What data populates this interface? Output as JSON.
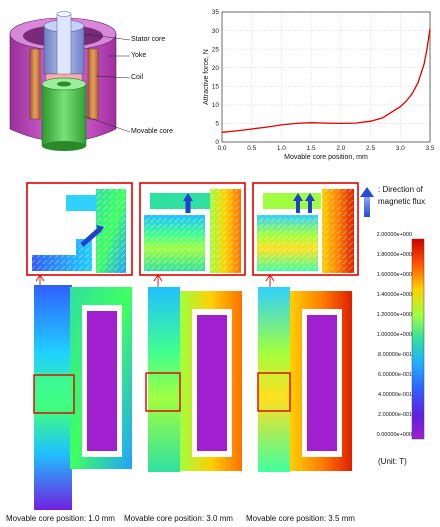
{
  "solenoid_labels": {
    "stator_core": "Stator core",
    "yoke": "Yoke",
    "coil": "Coil",
    "movable_core": "Movable core"
  },
  "chart_data": {
    "type": "line",
    "title": "",
    "xlabel": "Movable core position, mm",
    "ylabel": "Attractive force, N",
    "xlim": [
      0,
      3.5
    ],
    "ylim": [
      0,
      35
    ],
    "xticks": [
      "0.0",
      "0.5",
      "1.0",
      "1.5",
      "2.0",
      "2.5",
      "3.0",
      "3.5"
    ],
    "yticks": [
      "0",
      "5",
      "10",
      "15",
      "20",
      "25",
      "30",
      "35"
    ],
    "grid": true,
    "series": [
      {
        "color": "#e00000",
        "x": [
          0.0,
          0.25,
          0.5,
          0.75,
          1.0,
          1.25,
          1.5,
          1.75,
          2.0,
          2.25,
          2.5,
          2.7,
          2.9,
          3.0,
          3.1,
          3.2,
          3.3,
          3.4,
          3.45,
          3.5
        ],
        "y": [
          2.6,
          3.0,
          3.5,
          4.0,
          4.6,
          5.0,
          5.2,
          5.1,
          5.0,
          5.1,
          5.6,
          6.5,
          8.5,
          9.5,
          11.0,
          13.0,
          16.0,
          21.0,
          25.0,
          30.5
        ]
      }
    ]
  },
  "flux_legend": {
    "line1": ": Direction of",
    "line2": "magnetic flux"
  },
  "colorbar": {
    "labels": [
      "2.00000e+000",
      "1.80000e+000",
      "1.60000e+000",
      "1.40000e+000",
      "1.20000e+000",
      "1.00000e+000",
      "8.00000e-001",
      "6.00000e-001",
      "4.00000e-001",
      "2.00000e-001",
      "0.00000e+000"
    ],
    "unit": "(Unit: T)",
    "colors": [
      "#d00000",
      "#ff6000",
      "#ffd000",
      "#a0ff40",
      "#30e0a0",
      "#20b0ff",
      "#3060ff",
      "#6020e0",
      "#a020d0"
    ]
  },
  "captions": [
    "Movable core position: 1.0 mm",
    "Movable core position: 3.0 mm",
    "Movable core position: 3.5 mm"
  ]
}
